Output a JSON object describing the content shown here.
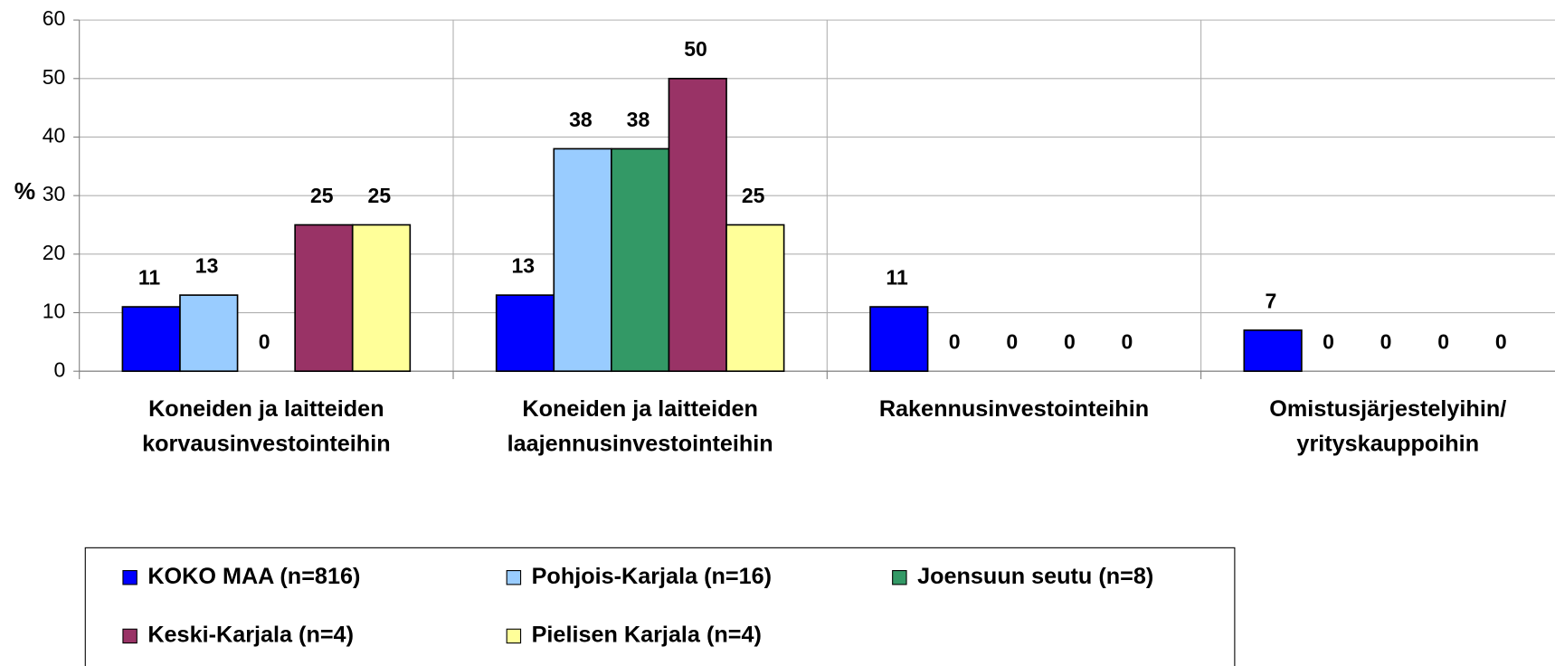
{
  "chart_data": {
    "type": "bar",
    "y_label": "%",
    "categories": [
      "Koneiden ja laitteiden\nkorvausinvestointeihin",
      "Koneiden ja laitteiden\nlaajennusinvestointeihin",
      "Rakennusinvestointeihin",
      "Omistusjärjestelyihin/\nyrityskauppoihin"
    ],
    "series": [
      {
        "name": "KOKO MAA (n=816)",
        "color": "#0000ff",
        "values": [
          11,
          13,
          11,
          7
        ]
      },
      {
        "name": "Pohjois-Karjala (n=16)",
        "color": "#99ccff",
        "values": [
          13,
          38,
          0,
          0
        ]
      },
      {
        "name": "Joensuun seutu (n=8)",
        "color": "#339966",
        "values": [
          0,
          38,
          0,
          0
        ]
      },
      {
        "name": "Keski-Karjala (n=4)",
        "color": "#993366",
        "values": [
          25,
          50,
          0,
          0
        ]
      },
      {
        "name": "Pielisen Karjala (n=4)",
        "color": "#ffff99",
        "values": [
          25,
          25,
          0,
          0
        ]
      }
    ],
    "ylim": [
      0,
      60
    ],
    "yticks": [
      0,
      10,
      20,
      30,
      40,
      50,
      60
    ],
    "grid": true
  }
}
